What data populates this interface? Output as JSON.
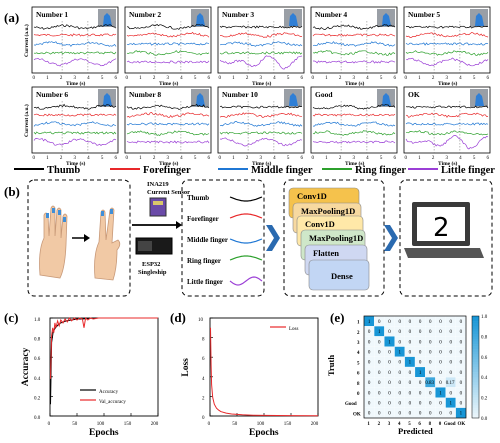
{
  "panel_labels": {
    "a": "(a)",
    "b": "(b)",
    "c": "(c)",
    "d": "(d)",
    "e": "(e)"
  },
  "colors": {
    "thumb": "#000000",
    "forefinger": "#e8282a",
    "middle": "#1f77d4",
    "ring": "#2ca02c",
    "little": "#9b3fd6"
  },
  "legend_a": [
    "Thumb",
    "Forefinger",
    "Middle finger",
    "Ring finger",
    "Little finger"
  ],
  "panel_a": {
    "gestures": [
      "Number 1",
      "Number 2",
      "Number 3",
      "Number 4",
      "Number 5",
      "Number 6",
      "Number 8",
      "Number 10",
      "Good",
      "OK"
    ],
    "xlabel": "Time (s)",
    "ylabel": "Current (a.u.)",
    "xticks": [
      "0",
      "1",
      "2",
      "3",
      "4",
      "5",
      "6"
    ]
  },
  "panel_b": {
    "sensor_label": "INA219\nCurrent Sensor",
    "mcu_label": "ESP32\nSingleship",
    "finger_labels": [
      "Thumb",
      "Forefinger",
      "Middle finger",
      "Ring finger",
      "Little finger"
    ],
    "layers": [
      "Conv1D",
      "MaxPooling1D",
      "Conv1D",
      "MaxPooling1D",
      "Flatten",
      "Dense"
    ],
    "laptop_digit": "2"
  },
  "chart_data": [
    {
      "panel": "c",
      "type": "line",
      "xlabel": "Epochs",
      "ylabel": "Accuracy",
      "xlim": [
        0,
        200
      ],
      "ylim": [
        0,
        1.0
      ],
      "xticks": [
        0,
        50,
        100,
        150,
        200
      ],
      "yticks": [
        0.0,
        0.2,
        0.4,
        0.6,
        0.8,
        1.0
      ],
      "legend_position": "bottom-right",
      "series": [
        {
          "name": "Accuracy",
          "color": "#000000",
          "x": [
            1,
            3,
            6,
            10,
            15,
            20,
            25,
            30,
            40,
            50,
            60,
            80,
            100,
            150,
            200
          ],
          "y": [
            0.12,
            0.75,
            0.86,
            0.9,
            0.93,
            0.95,
            0.96,
            0.97,
            0.98,
            0.99,
            0.99,
            1.0,
            1.0,
            1.0,
            1.0
          ]
        },
        {
          "name": "Val_accuracy",
          "color": "#e8282a",
          "x": [
            1,
            3,
            5,
            7,
            9,
            11,
            14,
            17,
            20,
            24,
            28,
            32,
            36,
            40,
            45,
            50,
            55,
            60,
            63,
            66,
            70,
            75,
            80,
            90,
            100,
            120,
            150,
            200
          ],
          "y": [
            0.38,
            0.82,
            0.9,
            0.85,
            0.95,
            0.9,
            0.97,
            0.92,
            0.98,
            0.95,
            0.99,
            0.96,
            1.0,
            0.97,
            1.0,
            0.98,
            1.0,
            0.99,
            0.9,
            1.0,
            0.98,
            1.0,
            0.99,
            1.0,
            1.0,
            1.0,
            1.0,
            1.0
          ]
        }
      ]
    },
    {
      "panel": "d",
      "type": "line",
      "xlabel": "Epochs",
      "ylabel": "Loss",
      "xlim": [
        0,
        200
      ],
      "ylim": [
        0,
        10
      ],
      "xticks": [
        0,
        50,
        100,
        150,
        200
      ],
      "yticks": [
        0,
        2,
        4,
        6,
        8,
        10
      ],
      "legend_position": "top-right",
      "series": [
        {
          "name": "Loss",
          "color": "#e8282a",
          "x": [
            1,
            2,
            3,
            5,
            8,
            12,
            16,
            20,
            30,
            40,
            60,
            80,
            100,
            150,
            200
          ],
          "y": [
            9.0,
            5.2,
            3.2,
            1.9,
            1.2,
            0.8,
            0.6,
            0.45,
            0.3,
            0.2,
            0.12,
            0.08,
            0.06,
            0.04,
            0.03
          ]
        }
      ]
    },
    {
      "panel": "e",
      "type": "heatmap",
      "xlabel": "Predicted",
      "ylabel": "Truth",
      "labels": [
        "1",
        "2",
        "3",
        "4",
        "5",
        "6",
        "8",
        "0",
        "Good",
        "OK"
      ],
      "colorbar_ticks": [
        0.0,
        0.2,
        0.4,
        0.6,
        0.8,
        1.0
      ],
      "matrix": [
        [
          1,
          0,
          0,
          0,
          0,
          0,
          0,
          0,
          0,
          0
        ],
        [
          0,
          1,
          0,
          0,
          0,
          0,
          0,
          0,
          0,
          0
        ],
        [
          0,
          0,
          1,
          0,
          0,
          0,
          0,
          0,
          0,
          0
        ],
        [
          0,
          0,
          0,
          1,
          0,
          0,
          0,
          0,
          0,
          0
        ],
        [
          0,
          0,
          0,
          0,
          1,
          0,
          0,
          0,
          0,
          0
        ],
        [
          0,
          0,
          0,
          0,
          0,
          1,
          0,
          0,
          0,
          0
        ],
        [
          0,
          0,
          0,
          0,
          0,
          0,
          0.83,
          0,
          0.17,
          0
        ],
        [
          0,
          0,
          0,
          0,
          0,
          0,
          0,
          1,
          0,
          0
        ],
        [
          0,
          0,
          0,
          0,
          0,
          0,
          0,
          0,
          1,
          0
        ],
        [
          0,
          0,
          0,
          0,
          0,
          0,
          0,
          0,
          0,
          1
        ]
      ],
      "cell_labels": [
        [
          "1",
          "0",
          "0",
          "0",
          "0",
          "0",
          "0",
          "0",
          "0",
          "0"
        ],
        [
          "0",
          "1",
          "0",
          "0",
          "0",
          "0",
          "0",
          "0",
          "0",
          "0"
        ],
        [
          "0",
          "0",
          "1",
          "0",
          "0",
          "0",
          "0",
          "0",
          "0",
          "0"
        ],
        [
          "0",
          "0",
          "0",
          "1",
          "0",
          "0",
          "0",
          "0",
          "0",
          "0"
        ],
        [
          "0",
          "0",
          "0",
          "0",
          "1",
          "0",
          "0",
          "0",
          "0",
          "0"
        ],
        [
          "0",
          "0",
          "0",
          "0",
          "0",
          "1",
          "0",
          "0",
          "0",
          "0"
        ],
        [
          "0",
          "0",
          "0",
          "0",
          "0",
          "0",
          "0.83",
          "0",
          "0.17",
          "0"
        ],
        [
          "0",
          "0",
          "0",
          "0",
          "0",
          "0",
          "0",
          "1",
          "0",
          "0"
        ],
        [
          "0",
          "0",
          "0",
          "0",
          "0",
          "0",
          "0",
          "0",
          "1",
          "0"
        ],
        [
          "0",
          "0",
          "0",
          "0",
          "0",
          "0",
          "0",
          "0",
          "0",
          "1"
        ]
      ]
    }
  ]
}
